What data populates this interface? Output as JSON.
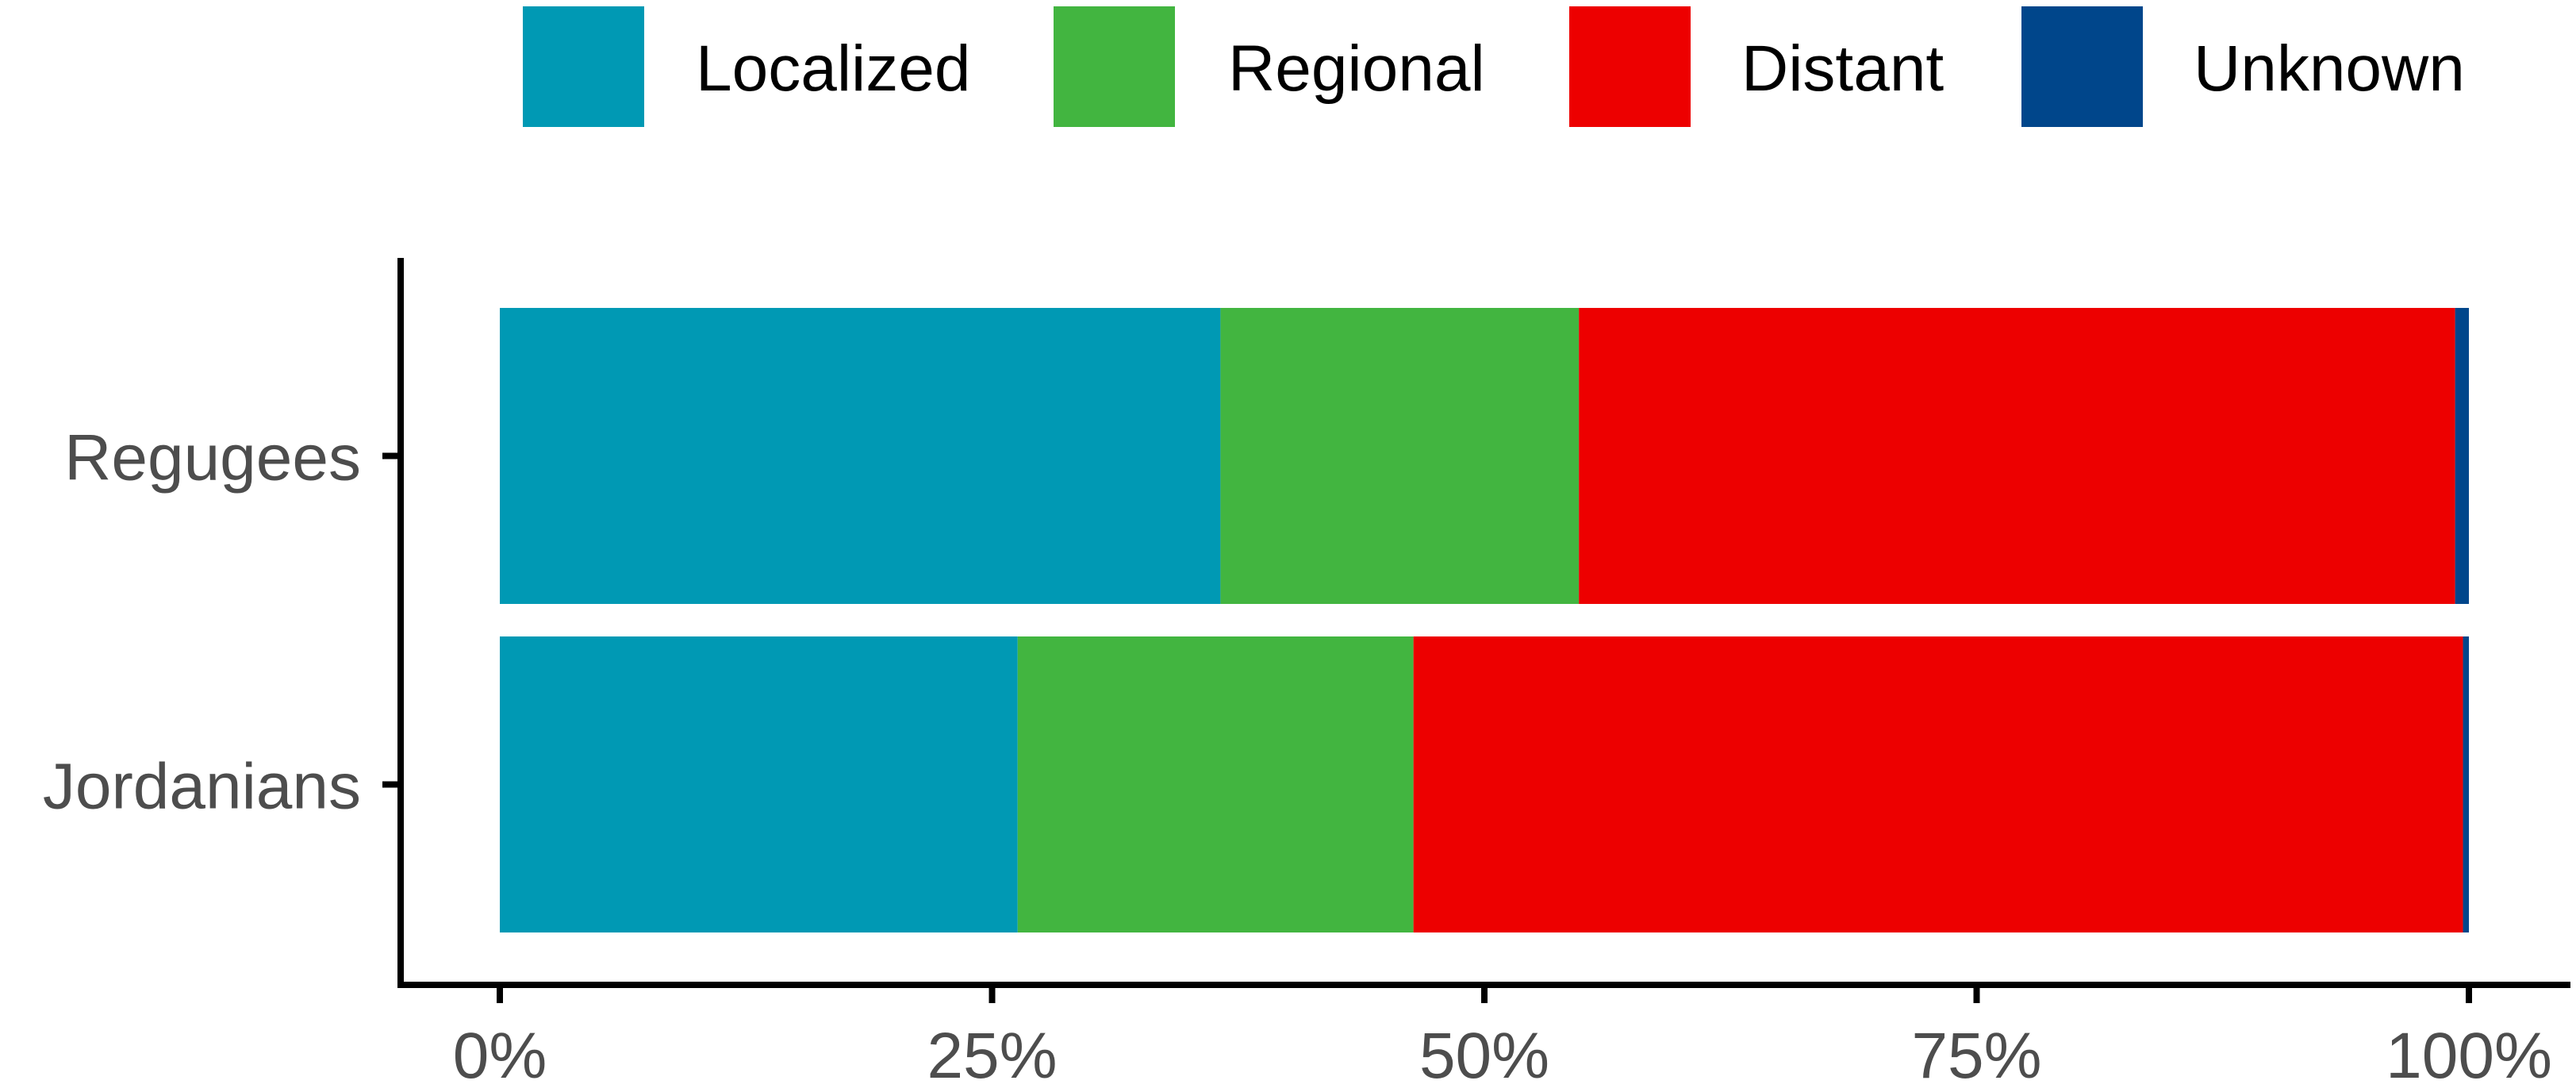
{
  "chart_data": {
    "type": "bar",
    "orientation": "horizontal",
    "stacked": true,
    "percent": true,
    "categories": [
      "Regugees",
      "Jordanians"
    ],
    "series": [
      {
        "name": "Localized",
        "color": "#0099B4",
        "values": [
          36.6,
          26.3
        ]
      },
      {
        "name": "Regional",
        "color": "#42B540",
        "values": [
          18.2,
          20.1
        ]
      },
      {
        "name": "Distant",
        "color": "#ED0000",
        "values": [
          44.5,
          53.3
        ]
      },
      {
        "name": "Unknown",
        "color": "#00468B",
        "values": [
          0.7,
          0.3
        ]
      }
    ],
    "x_ticks": [
      "0%",
      "25%",
      "50%",
      "75%",
      "100%"
    ],
    "x_tick_values": [
      0,
      25,
      50,
      75,
      100
    ],
    "xlim": [
      0,
      100
    ],
    "title": "",
    "xlabel": "",
    "ylabel": "",
    "legend_position": "top",
    "grid": false
  }
}
